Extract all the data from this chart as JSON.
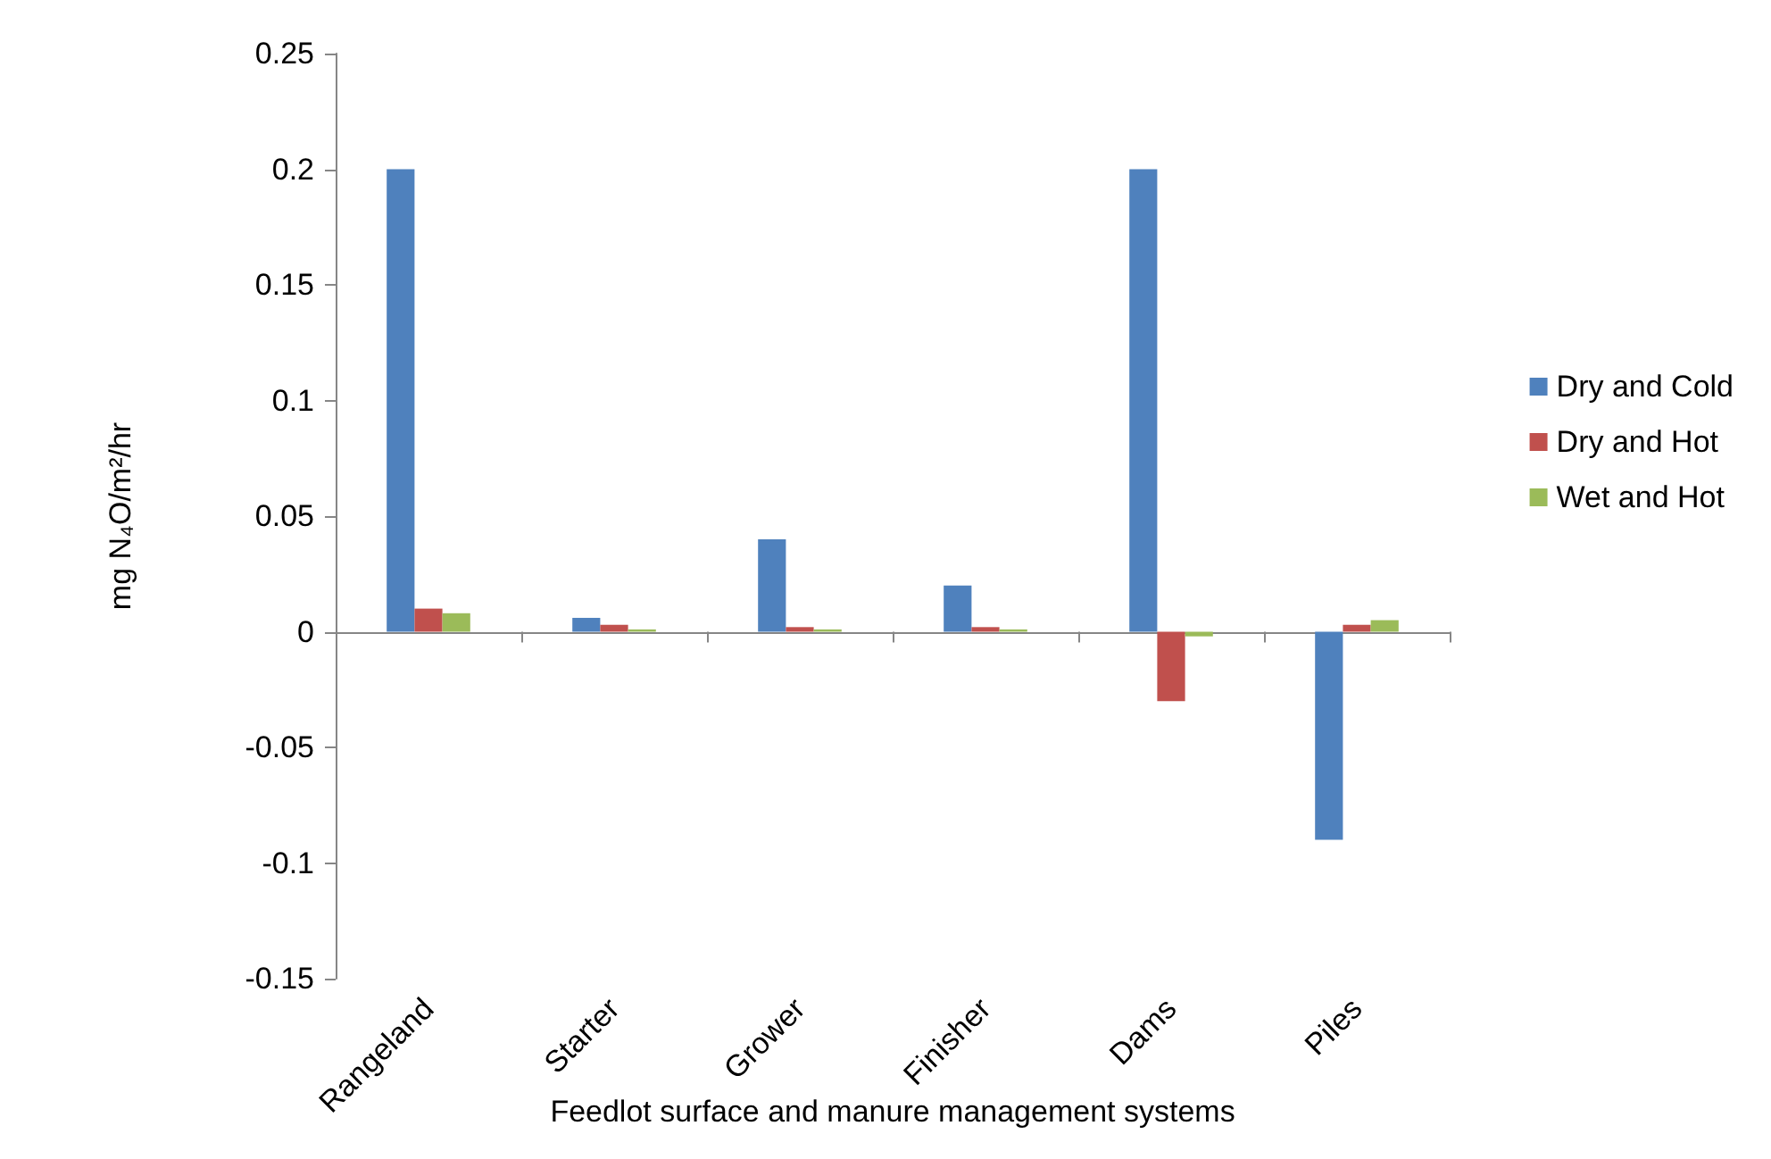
{
  "chart_data": {
    "type": "bar",
    "xlabel": "Feedlot surface and manure management systems",
    "ylabel": "mg N₄O/m²/hr",
    "categories": [
      "Rangeland",
      "Starter",
      "Grower",
      "Finisher",
      "Dams",
      "Piles"
    ],
    "series": [
      {
        "name": "Dry and Cold",
        "color": "#4f81bd",
        "values": [
          0.2,
          0.006,
          0.04,
          0.02,
          0.2,
          -0.09
        ]
      },
      {
        "name": "Dry and Hot",
        "color": "#c0504d",
        "values": [
          0.01,
          0.003,
          0.002,
          0.002,
          -0.03,
          0.003
        ]
      },
      {
        "name": "Wet and Hot",
        "color": "#9bbb59",
        "values": [
          0.008,
          0.001,
          0.001,
          0.001,
          -0.002,
          0.005
        ]
      }
    ],
    "ylim": [
      -0.15,
      0.25
    ],
    "yticks": [
      -0.15,
      -0.1,
      -0.05,
      0,
      0.05,
      0.1,
      0.15,
      0.2,
      0.25
    ],
    "legend": "right"
  }
}
